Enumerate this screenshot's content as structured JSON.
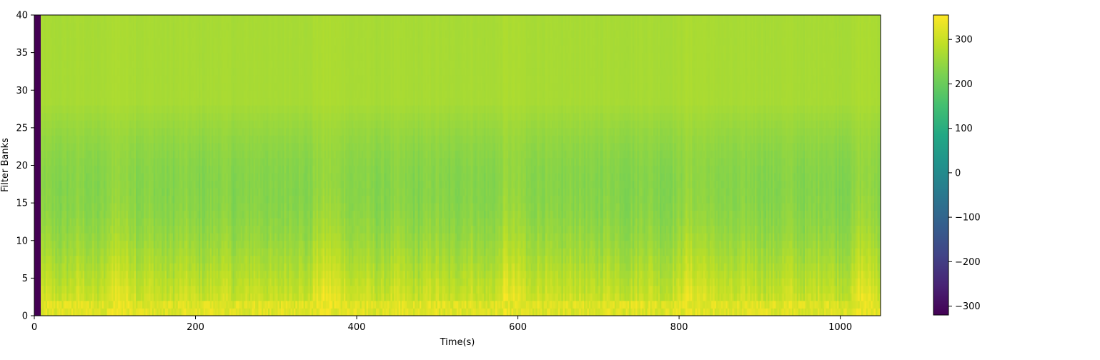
{
  "chart_data": {
    "type": "heatmap",
    "title": "",
    "xlabel": "Time(s)",
    "ylabel": "Filter Banks",
    "xlim": [
      0,
      1050
    ],
    "ylim": [
      0,
      40
    ],
    "xticks": [
      0,
      200,
      400,
      600,
      800,
      1000
    ],
    "xtick_labels": [
      "0",
      "200",
      "400",
      "600",
      "800",
      "1000"
    ],
    "yticks": [
      0,
      5,
      10,
      15,
      20,
      25,
      30,
      35,
      40
    ],
    "ytick_labels": [
      "0",
      "5",
      "10",
      "15",
      "20",
      "25",
      "30",
      "35",
      "40"
    ],
    "colormap": "viridis",
    "colorbar": {
      "vmin": -320,
      "vmax": 355,
      "ticks": [
        -300,
        -200,
        -100,
        0,
        100,
        200,
        300
      ],
      "tick_labels": [
        "−300",
        "−200",
        "−100",
        "0",
        "100",
        "200",
        "300"
      ]
    },
    "data_description": {
      "leading_column_value": -320,
      "leading_column_time_range": [
        0,
        8
      ],
      "low_band_value_range": [
        300,
        345
      ],
      "high_band_value": 265,
      "mid_band_typical_range": [
        200,
        300
      ],
      "bright_time_regions": [
        [
          95,
          125
        ],
        [
          345,
          390
        ],
        [
          580,
          610
        ],
        [
          805,
          835
        ],
        [
          1020,
          1045
        ]
      ]
    }
  }
}
